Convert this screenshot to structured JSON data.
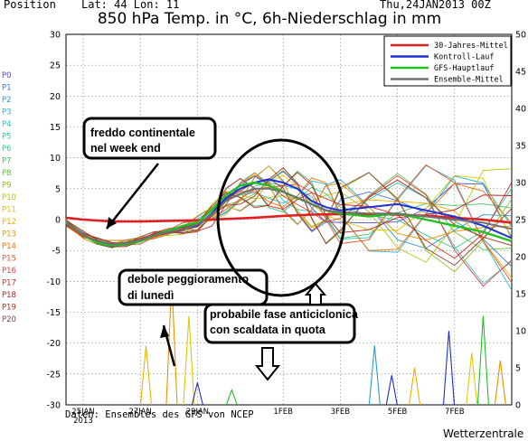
{
  "header": {
    "position": "Position",
    "lat_lon": "Lat: 44 Lon: 11",
    "run": "Thu,24JAN2013 00Z",
    "title": "850 hPa Temp. in °C, 6h-Niederschlag in mm"
  },
  "footer": {
    "source": "Daten: Ensembles des GFS von NCEP",
    "brand": "Wetterzentrale"
  },
  "chart_data": {
    "type": "line",
    "title": "850 hPa Temp. in °C, 6h-Niederschlag in mm",
    "xlabel": "",
    "ylabel_left": "",
    "ylabel_right": "",
    "x_ticks": [
      "25JAN",
      "2013",
      "27JAN",
      "29JAN",
      "1FEB",
      "3FEB",
      "5FEB",
      "7FEB"
    ],
    "x_tick_days": [
      0,
      2,
      4,
      7,
      9,
      11,
      13
    ],
    "x_start_day": -0.6,
    "x_end_day": 15.0,
    "ylim_left": [
      -30,
      30
    ],
    "y_ticks_left": [
      30,
      25,
      20,
      15,
      10,
      5,
      0,
      -5,
      -10,
      -15,
      -20,
      -25,
      -30
    ],
    "ylim_right": [
      0,
      50
    ],
    "y_ticks_right": [
      50,
      45,
      40,
      35,
      30,
      25,
      20,
      15,
      10,
      5,
      0
    ],
    "grid": true,
    "legend_position": "top-right",
    "legend": [
      {
        "name": "30-Jahres-Mittel",
        "color": "#e02020"
      },
      {
        "name": "Kontroll-Lauf",
        "color": "#1e2fd8"
      },
      {
        "name": "GFS-Hauptlauf",
        "color": "#22c022"
      },
      {
        "name": "Ensemble-Mittel",
        "color": "#707070"
      }
    ],
    "members": [
      {
        "name": "P0",
        "color": "#4a4ad0"
      },
      {
        "name": "P1",
        "color": "#3a78e0"
      },
      {
        "name": "P2",
        "color": "#2a9ad8"
      },
      {
        "name": "P3",
        "color": "#20b4d8"
      },
      {
        "name": "P4",
        "color": "#22c0c0"
      },
      {
        "name": "P5",
        "color": "#30c8b0"
      },
      {
        "name": "P6",
        "color": "#30c890"
      },
      {
        "name": "P7",
        "color": "#40c060"
      },
      {
        "name": "P8",
        "color": "#60c040"
      },
      {
        "name": "P9",
        "color": "#90c020"
      },
      {
        "name": "P10",
        "color": "#b8c800"
      },
      {
        "name": "P11",
        "color": "#e0c800"
      },
      {
        "name": "P12",
        "color": "#f0b000"
      },
      {
        "name": "P13",
        "color": "#f09000"
      },
      {
        "name": "P14",
        "color": "#f07000"
      },
      {
        "name": "P15",
        "color": "#f05030"
      },
      {
        "name": "P16",
        "color": "#e04040"
      },
      {
        "name": "P17",
        "color": "#d02828"
      },
      {
        "name": "P18",
        "color": "#b82020"
      },
      {
        "name": "P19",
        "color": "#a03020"
      },
      {
        "name": "P20",
        "color": "#904040"
      }
    ],
    "series": [
      {
        "name": "30-Jahres-Mittel",
        "color": "#e02020",
        "x": [
          -0.6,
          0,
          1,
          2,
          3,
          4,
          5,
          6,
          7,
          8,
          9,
          10,
          11,
          12,
          13,
          14,
          15
        ],
        "values": [
          0.3,
          0.0,
          -0.3,
          -0.3,
          -0.2,
          -0.1,
          0.1,
          0.3,
          0.6,
          0.8,
          0.9,
          0.9,
          0.8,
          0.6,
          0.3,
          0.0,
          -0.5
        ]
      },
      {
        "name": "Kontroll-Lauf",
        "color": "#1e2fd8",
        "x": [
          -0.6,
          0,
          0.5,
          1,
          1.5,
          2,
          2.5,
          3,
          3.5,
          4,
          4.5,
          5,
          5.5,
          6,
          6.5,
          7,
          7.5,
          8,
          8.5,
          9,
          10,
          11,
          12,
          13,
          14,
          15
        ],
        "values": [
          -0.5,
          -2.5,
          -3.5,
          -4.0,
          -3.8,
          -3.5,
          -2.5,
          -2.0,
          -1.5,
          -1.0,
          1.0,
          3.5,
          5.0,
          6.0,
          6.5,
          6.0,
          5.0,
          3.0,
          2.0,
          1.5,
          2.0,
          2.5,
          1.5,
          0.5,
          -1.0,
          -3.0
        ]
      },
      {
        "name": "GFS-Hauptlauf",
        "color": "#22c022",
        "x": [
          -0.6,
          0,
          0.5,
          1,
          1.5,
          2,
          2.5,
          3,
          3.5,
          4,
          4.5,
          5,
          5.5,
          6,
          6.5,
          7,
          7.5,
          8,
          8.5,
          9,
          10,
          11,
          12,
          13,
          14,
          15
        ],
        "values": [
          -0.5,
          -2.5,
          -3.8,
          -4.2,
          -4.0,
          -3.5,
          -2.5,
          -1.8,
          -1.0,
          -0.5,
          1.5,
          4.0,
          5.5,
          6.0,
          5.5,
          4.5,
          3.5,
          2.5,
          1.5,
          1.0,
          0.5,
          1.0,
          0.0,
          -1.0,
          -2.0,
          -3.5
        ]
      },
      {
        "name": "Ensemble-Mittel",
        "color": "#707070",
        "x": [
          -0.6,
          0,
          0.5,
          1,
          1.5,
          2,
          2.5,
          3,
          3.5,
          4,
          4.5,
          5,
          5.5,
          6,
          6.5,
          7,
          7.5,
          8,
          8.5,
          9,
          10,
          11,
          12,
          13,
          14,
          15
        ],
        "values": [
          -0.5,
          -2.5,
          -3.5,
          -4.0,
          -3.8,
          -3.3,
          -2.5,
          -2.0,
          -1.5,
          -0.8,
          0.8,
          3.0,
          4.2,
          5.0,
          5.0,
          4.5,
          3.5,
          2.5,
          1.5,
          1.2,
          1.0,
          1.0,
          0.5,
          0.0,
          -0.5,
          -1.5
        ]
      }
    ],
    "member_members_note": "",
    "precipitation_spikes": [
      {
        "x": 2.2,
        "value": 8,
        "color": "#f0b000"
      },
      {
        "x": 3.1,
        "value": 17,
        "color": "#f09000"
      },
      {
        "x": 3.7,
        "value": 12,
        "color": "#e0c800"
      },
      {
        "x": 4.0,
        "value": 3,
        "color": "#1e2fd8"
      },
      {
        "x": 5.2,
        "value": 2,
        "color": "#22c022"
      },
      {
        "x": 10.2,
        "value": 8,
        "color": "#2a9ad8"
      },
      {
        "x": 10.8,
        "value": 4,
        "color": "#1e2fd8"
      },
      {
        "x": 11.6,
        "value": 5,
        "color": "#f0b000"
      },
      {
        "x": 12.8,
        "value": 10,
        "color": "#1e2fd8"
      },
      {
        "x": 13.6,
        "value": 7,
        "color": "#e0c800"
      },
      {
        "x": 14.0,
        "value": 12,
        "color": "#22c022"
      },
      {
        "x": 14.6,
        "value": 6,
        "color": "#f09000"
      }
    ]
  },
  "annotations": {
    "cold": [
      "freddo continentale",
      "nel week end"
    ],
    "weak": [
      "debole peggioramento",
      "di lunedì"
    ],
    "anticyclone": [
      "probabile fase anticiclonica",
      "con scaldata in quota"
    ]
  }
}
